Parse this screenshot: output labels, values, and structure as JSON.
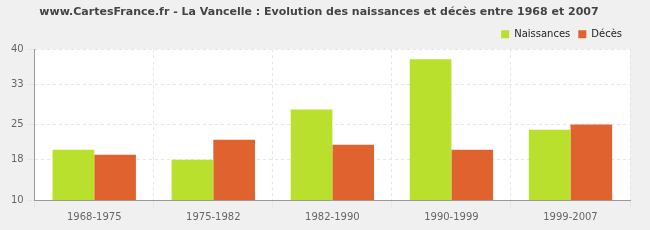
{
  "chart_data": {
    "type": "bar",
    "title": "www.CartesFrance.fr - La Vancelle : Evolution des naissances et décès entre 1968 et 2007",
    "categories": [
      "1968-1975",
      "1975-1982",
      "1982-1990",
      "1990-1999",
      "1999-2007"
    ],
    "series": [
      {
        "name": "Naissances",
        "color": "#b8e02c",
        "values": [
          20,
          18,
          28,
          38,
          24
        ]
      },
      {
        "name": "Décès",
        "color": "#e0632f",
        "values": [
          19,
          22,
          21,
          20,
          25
        ]
      }
    ],
    "ylim": [
      10,
      40
    ],
    "yticks": [
      10,
      18,
      25,
      33,
      40
    ],
    "grid": true,
    "legend": "upper right"
  }
}
